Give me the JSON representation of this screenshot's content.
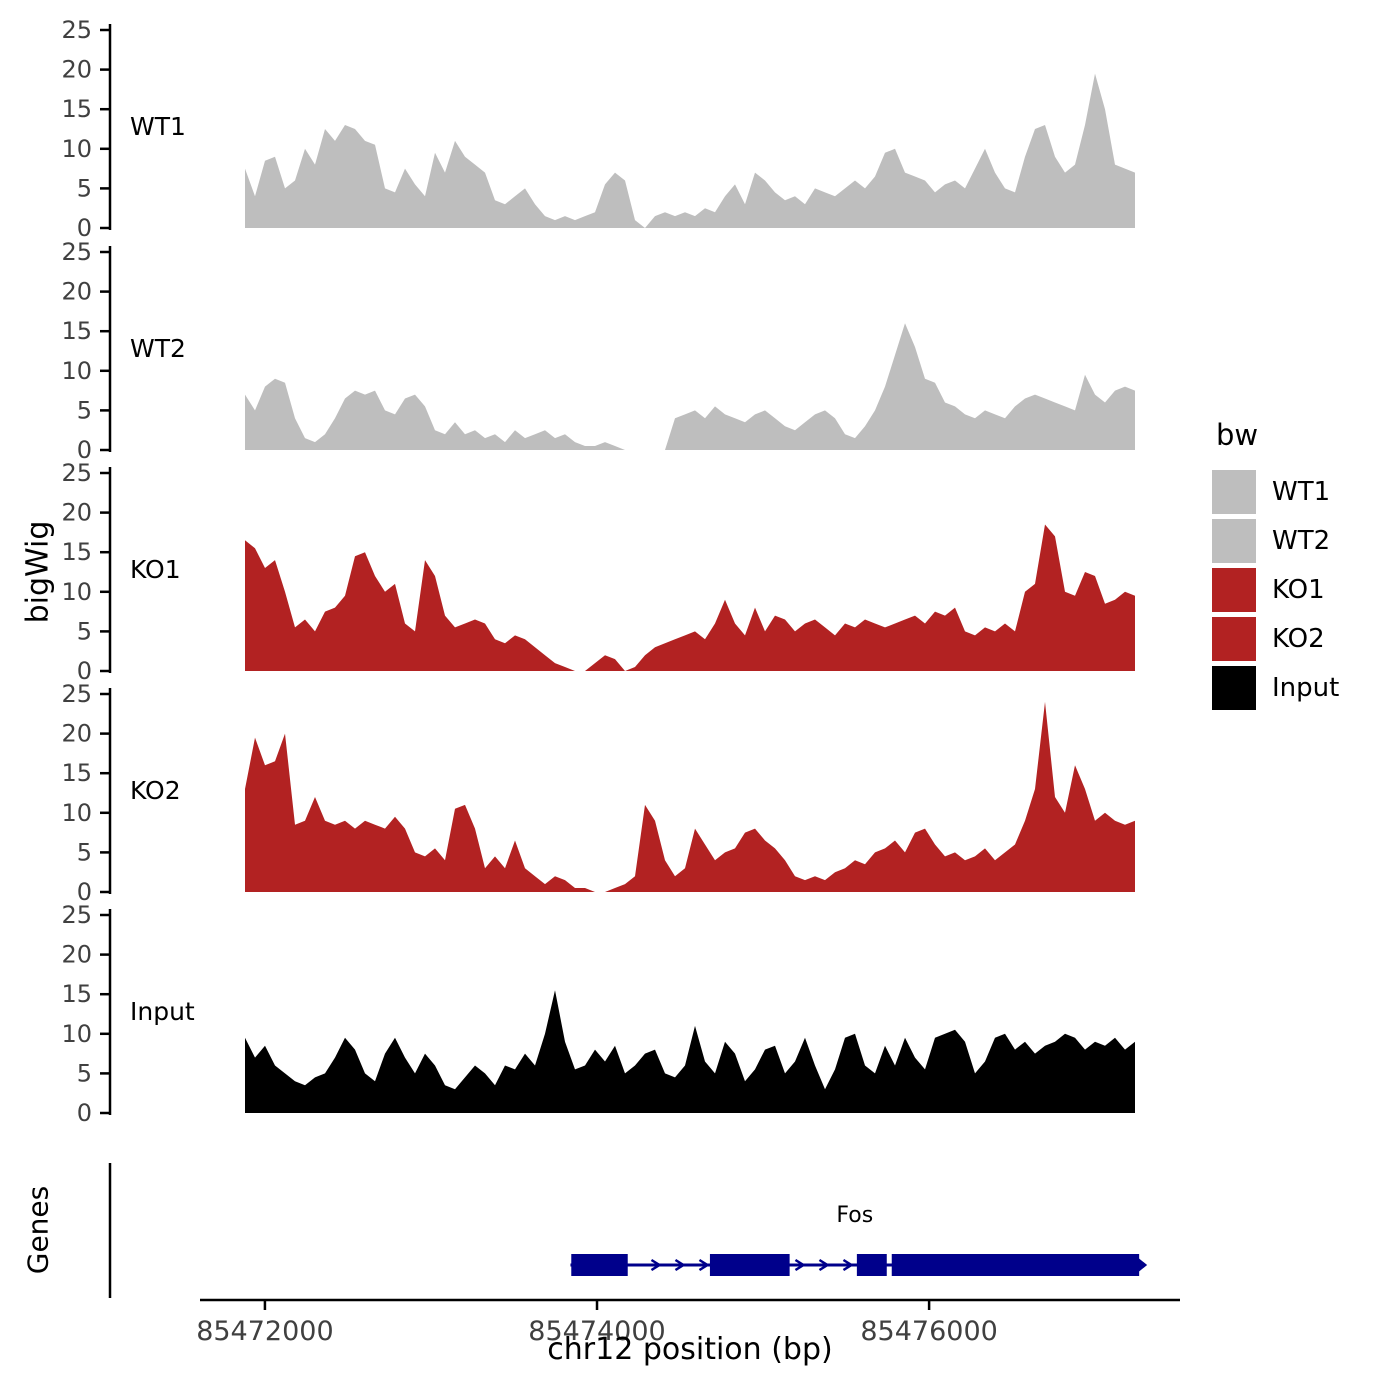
{
  "labels": {
    "y_axis": "bigWig",
    "genes_axis": "Genes",
    "x_axis": "chr12 position (bp)"
  },
  "legend": {
    "title": "bw",
    "entries": [
      {
        "label": "WT1",
        "color": "#BEBEBE"
      },
      {
        "label": "WT2",
        "color": "#BEBEBE"
      },
      {
        "label": "KO1",
        "color": "#B22222"
      },
      {
        "label": "KO2",
        "color": "#B22222"
      },
      {
        "label": "Input",
        "color": "#000000"
      }
    ]
  },
  "chart_data": {
    "type": "area",
    "title": "",
    "xlabel": "chr12 position (bp)",
    "ylabel": "bigWig",
    "x_domain_bp": [
      85471880,
      85477240
    ],
    "x_ticks": [
      {
        "value": 85472000,
        "label": "85472000"
      },
      {
        "value": 85474000,
        "label": "85474000"
      },
      {
        "value": 85476000,
        "label": "85476000"
      }
    ],
    "y_range": [
      0,
      25
    ],
    "y_ticks": [
      0,
      5,
      10,
      15,
      20,
      25
    ],
    "tracks": [
      {
        "name": "WT1",
        "color": "#BEBEBE",
        "values": [
          7.5,
          4,
          8.5,
          9,
          5,
          6,
          10,
          8,
          12.5,
          11,
          13,
          12.5,
          11,
          10.5,
          5,
          4.5,
          7.5,
          5.5,
          4,
          9.5,
          7,
          11,
          9,
          8,
          7,
          3.5,
          3,
          4,
          5,
          3,
          1.5,
          1,
          1.5,
          1,
          1.5,
          2,
          5.5,
          7,
          6,
          1,
          0,
          1.5,
          2,
          1.5,
          2,
          1.5,
          2.5,
          2,
          4,
          5.5,
          3,
          7,
          6,
          4.5,
          3.5,
          4,
          3,
          5,
          4.5,
          4,
          5,
          6,
          5,
          6.5,
          9.5,
          10,
          7,
          6.5,
          6,
          4.5,
          5.5,
          6,
          5,
          7.5,
          10,
          7,
          5,
          4.5,
          9,
          12.5,
          13,
          9,
          7,
          8,
          13,
          19.5,
          15,
          8,
          7.5,
          7
        ]
      },
      {
        "name": "WT2",
        "color": "#BEBEBE",
        "values": [
          7,
          5,
          8,
          9,
          8.5,
          4,
          1.5,
          1,
          2,
          4,
          6.5,
          7.5,
          7,
          7.5,
          5,
          4.5,
          6.5,
          7,
          5.5,
          2.5,
          2,
          3.5,
          2,
          2.5,
          1.5,
          2,
          1,
          2.5,
          1.5,
          2,
          2.5,
          1.5,
          2,
          1,
          0.5,
          0.5,
          1,
          0.5,
          0,
          0,
          0,
          0,
          0,
          4,
          4.5,
          5,
          4,
          5.5,
          4.5,
          4,
          3.5,
          4.5,
          5,
          4,
          3,
          2.5,
          3.5,
          4.5,
          5,
          4,
          2,
          1.5,
          3,
          5,
          8,
          12,
          16,
          13,
          9,
          8.5,
          6,
          5.5,
          4.5,
          4,
          5,
          4.5,
          4,
          5.5,
          6.5,
          7,
          6.5,
          6,
          5.5,
          5,
          9.5,
          7,
          6,
          7.5,
          8,
          7.5
        ]
      },
      {
        "name": "KO1",
        "color": "#B22222",
        "values": [
          16.5,
          15.5,
          13,
          14,
          10,
          5.5,
          6.5,
          5,
          7.5,
          8,
          9.5,
          14.5,
          15,
          12,
          10,
          11,
          6,
          5,
          14,
          12,
          7,
          5.5,
          6,
          6.5,
          6,
          4,
          3.5,
          4.5,
          4,
          3,
          2,
          1,
          0.5,
          0,
          0,
          1,
          2,
          1.5,
          0,
          0.5,
          2,
          3,
          3.5,
          4,
          4.5,
          5,
          4,
          6,
          9,
          6,
          4.5,
          8,
          5,
          7,
          6.5,
          5,
          6,
          6.5,
          5.5,
          4.5,
          6,
          5.5,
          6.5,
          6,
          5.5,
          6,
          6.5,
          7,
          6,
          7.5,
          7,
          8,
          5,
          4.5,
          5.5,
          5,
          6,
          5,
          10,
          11,
          18.5,
          17,
          10,
          9.5,
          12.5,
          12,
          8.5,
          9,
          10,
          9.5
        ]
      },
      {
        "name": "KO2",
        "color": "#B22222",
        "values": [
          13,
          19.5,
          16,
          16.5,
          20,
          8.5,
          9,
          12,
          9,
          8.5,
          9,
          8,
          9,
          8.5,
          8,
          9.5,
          8,
          5,
          4.5,
          5.5,
          4,
          10.5,
          11,
          8,
          3,
          4.5,
          3,
          6.5,
          3,
          2,
          1,
          2,
          1.5,
          0.5,
          0.5,
          0,
          0,
          0.5,
          1,
          2,
          11,
          9,
          4,
          2,
          3,
          8,
          6,
          4,
          5,
          5.5,
          7.5,
          8,
          6.5,
          5.5,
          4,
          2,
          1.5,
          2,
          1.5,
          2.5,
          3,
          4,
          3.5,
          5,
          5.5,
          6.5,
          5,
          7.5,
          8,
          6,
          4.5,
          5,
          4,
          4.5,
          5.5,
          4,
          5,
          6,
          9,
          13,
          24,
          12,
          10,
          16,
          13,
          9,
          10,
          9,
          8.5,
          9
        ]
      },
      {
        "name": "Input",
        "color": "#000000",
        "values": [
          9.5,
          7,
          8.5,
          6,
          5,
          4,
          3.5,
          4.5,
          5,
          7,
          9.5,
          8,
          5,
          4,
          7.5,
          9.5,
          7,
          5,
          7.5,
          6,
          3.5,
          3,
          4.5,
          6,
          5,
          3.5,
          6,
          5.5,
          7.5,
          6,
          10,
          15.5,
          9,
          5.5,
          6,
          8,
          6.5,
          8.5,
          5,
          6,
          7.5,
          8,
          5,
          4.5,
          6,
          11,
          6.5,
          5,
          9,
          7.5,
          4,
          5.5,
          8,
          8.5,
          5,
          6.5,
          9.5,
          6,
          3,
          5.5,
          9.5,
          10,
          6,
          5,
          8.5,
          6,
          9.5,
          7,
          5.5,
          9.5,
          10,
          10.5,
          9,
          5,
          6.5,
          9.5,
          10,
          8,
          9,
          7.5,
          8.5,
          9,
          10,
          9.5,
          8,
          9,
          8.5,
          9.5,
          8,
          9
        ]
      }
    ],
    "genes": {
      "gene": {
        "name": "Fos",
        "strand": "+",
        "start": 85473840,
        "end": 85477265,
        "color": "#00008B",
        "exons": [
          [
            85473845,
            85474185
          ],
          [
            85474680,
            85475160
          ],
          [
            85475565,
            85475745
          ],
          [
            85475775,
            85477265
          ]
        ]
      }
    }
  }
}
